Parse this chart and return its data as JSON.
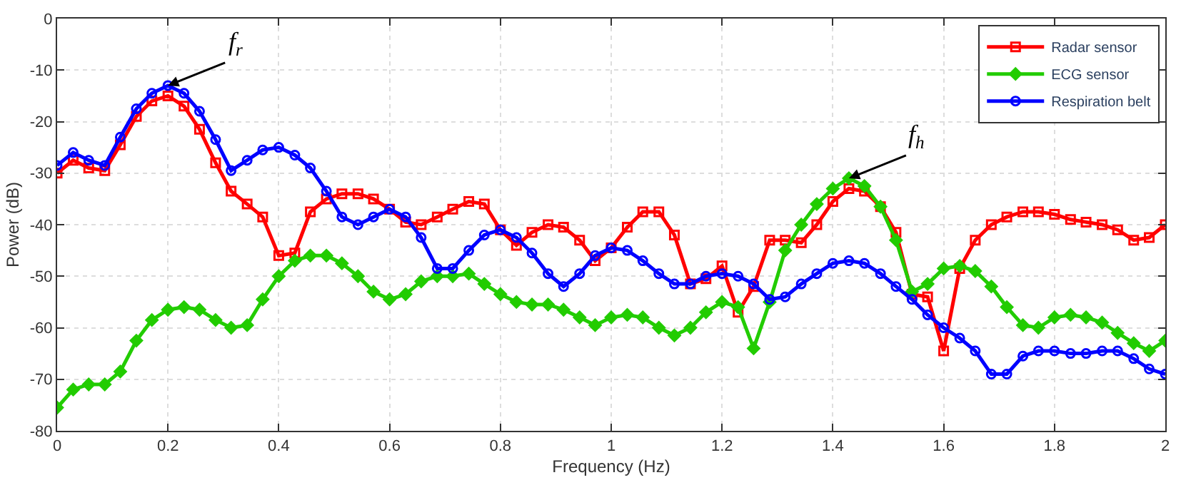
{
  "chart_data": {
    "type": "line",
    "xlabel": "Frequency (Hz)",
    "ylabel": "Power (dB)",
    "x": [
      0,
      0.029,
      0.057,
      0.086,
      0.114,
      0.143,
      0.171,
      0.2,
      0.229,
      0.257,
      0.286,
      0.314,
      0.343,
      0.371,
      0.4,
      0.429,
      0.457,
      0.486,
      0.514,
      0.543,
      0.571,
      0.6,
      0.629,
      0.657,
      0.686,
      0.714,
      0.743,
      0.771,
      0.8,
      0.829,
      0.857,
      0.886,
      0.914,
      0.943,
      0.971,
      1,
      1.029,
      1.057,
      1.086,
      1.114,
      1.143,
      1.171,
      1.2,
      1.229,
      1.257,
      1.286,
      1.314,
      1.343,
      1.371,
      1.4,
      1.429,
      1.457,
      1.486,
      1.514,
      1.543,
      1.571,
      1.6,
      1.629,
      1.657,
      1.686,
      1.714,
      1.743,
      1.771,
      1.8,
      1.829,
      1.857,
      1.886,
      1.914,
      1.943,
      1.971,
      2
    ],
    "series": [
      {
        "name": "Radar sensor",
        "color": "#ff0000",
        "marker": "square",
        "values": [
          -30,
          -27.5,
          -29,
          -29.5,
          -24.5,
          -19,
          -16,
          -15,
          -17,
          -21.5,
          -28,
          -33.5,
          -36,
          -38.5,
          -46,
          -45.5,
          -37.5,
          -35,
          -34,
          -34,
          -35,
          -37,
          -39.5,
          -40,
          -38.5,
          -37,
          -35.5,
          -36,
          -41,
          -44,
          -41.5,
          -40,
          -40.5,
          -43,
          -47,
          -44.5,
          -40.5,
          -37.5,
          -37.5,
          -42,
          -51.5,
          -50.5,
          -48,
          -57,
          -52,
          -43,
          -43,
          -43.5,
          -40,
          -35.5,
          -33,
          -33.5,
          -36.5,
          -41.5,
          -53.5,
          -54,
          -64.5,
          -48.5,
          -43,
          -40,
          -38.5,
          -37.5,
          -37.5,
          -38,
          -39,
          -39.5,
          -40,
          -41,
          -43,
          -42.5,
          -40
        ]
      },
      {
        "name": "ECG sensor",
        "color": "#22cc00",
        "marker": "diamond",
        "values": [
          -75.5,
          -72,
          -71,
          -71,
          -68.5,
          -62.5,
          -58.5,
          -56.5,
          -56,
          -56.5,
          -58.5,
          -60,
          -59.5,
          -54.5,
          -50,
          -47,
          -46,
          -46,
          -47.5,
          -50,
          -53,
          -54.5,
          -53.5,
          -51,
          -50,
          -50,
          -49.5,
          -51.5,
          -53.5,
          -55,
          -55.5,
          -55.5,
          -56.5,
          -58,
          -59.5,
          -58,
          -57.5,
          -58,
          -60,
          -61.5,
          -60,
          -57,
          -55,
          -56,
          -64,
          -55,
          -45,
          -40,
          -36,
          -33,
          -31,
          -32.5,
          -36.5,
          -43,
          -53,
          -51.5,
          -48.5,
          -48,
          -49,
          -52,
          -56,
          -59.5,
          -60,
          -58,
          -57.5,
          -58,
          -59,
          -61,
          -63,
          -64.5,
          -62.5
        ]
      },
      {
        "name": "Respiration belt",
        "color": "#0000ff",
        "marker": "circle",
        "values": [
          -28.5,
          -26,
          -27.5,
          -28.5,
          -23,
          -17.5,
          -14.5,
          -13,
          -14.5,
          -18,
          -23.5,
          -29.5,
          -27.5,
          -25.5,
          -25,
          -26.5,
          -29,
          -33.5,
          -38.5,
          -40,
          -38.5,
          -37,
          -38.5,
          -42.5,
          -48.5,
          -48.5,
          -45,
          -42,
          -41,
          -42.5,
          -45.5,
          -49.5,
          -52,
          -49.5,
          -46,
          -44.5,
          -45,
          -47,
          -49.5,
          -51.5,
          -51.5,
          -50,
          -49.5,
          -50,
          -51.5,
          -54.5,
          -54,
          -51.5,
          -49.5,
          -47.5,
          -47,
          -47.5,
          -49.5,
          -52,
          -54.5,
          -57.5,
          -60,
          -62,
          -64.5,
          -69,
          -69,
          -65.5,
          -64.5,
          -64.5,
          -65,
          -65,
          -64.5,
          -64.5,
          -66,
          -68,
          -69
        ]
      }
    ],
    "xlim": [
      0,
      2
    ],
    "xticks": [
      0,
      0.2,
      0.4,
      0.6,
      0.8,
      1,
      1.2,
      1.4,
      1.6,
      1.8,
      2
    ],
    "ylim": [
      -80,
      0
    ],
    "yticks": [
      -80,
      -70,
      -60,
      -50,
      -40,
      -30,
      -20,
      -10,
      0
    ],
    "annotations": [
      {
        "text": "f$_{r}$",
        "x": 0.2,
        "y": -13
      },
      {
        "text": "f$_{h}$",
        "x": 1.429,
        "y": -31
      }
    ],
    "grid": true,
    "legend": "top right",
    "line_style": "solid"
  }
}
